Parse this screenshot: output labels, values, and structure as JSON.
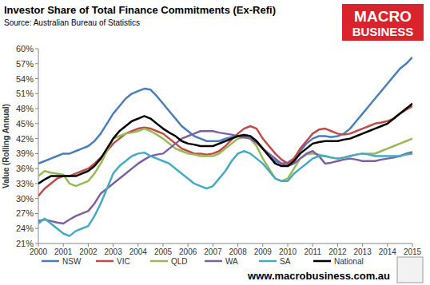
{
  "chart_data": {
    "type": "line",
    "title": "Investor Share of Total Finance Commitments (Ex-Refi)",
    "subtitle": "Source: Australian Bureau of Statistics",
    "ylabel": "Value (Rolling Annual)",
    "annotations": [
      "MACRO",
      "BUSINESS",
      "www.macrobusiness.com.au"
    ],
    "x": [
      2000,
      2000.25,
      2000.5,
      2000.75,
      2001,
      2001.25,
      2001.5,
      2001.75,
      2002,
      2002.25,
      2002.5,
      2002.75,
      2003,
      2003.25,
      2003.5,
      2003.75,
      2004,
      2004.25,
      2004.5,
      2004.75,
      2005,
      2005.25,
      2005.5,
      2005.75,
      2006,
      2006.25,
      2006.5,
      2006.75,
      2007,
      2007.25,
      2007.5,
      2007.75,
      2008,
      2008.25,
      2008.5,
      2008.75,
      2009,
      2009.25,
      2009.5,
      2009.75,
      2010,
      2010.25,
      2010.5,
      2010.75,
      2011,
      2011.25,
      2011.5,
      2011.75,
      2012,
      2012.25,
      2012.5,
      2012.75,
      2013,
      2013.25,
      2013.5,
      2013.75,
      2014,
      2014.25,
      2014.5,
      2014.75,
      2015
    ],
    "series": [
      {
        "name": "NSW",
        "color": "#4a7ebb",
        "values": [
          37,
          37.5,
          38,
          38.5,
          39,
          39,
          39.5,
          40,
          40.5,
          41.5,
          43,
          45,
          47,
          48.5,
          50,
          51,
          51.5,
          52,
          51.8,
          50.5,
          49,
          47.5,
          46,
          44.5,
          43.5,
          42.5,
          42,
          41.5,
          41.5,
          41.5,
          42,
          42.3,
          42.5,
          42.8,
          42.5,
          41.5,
          40,
          38.5,
          37.5,
          37,
          37.2,
          38,
          39.5,
          41,
          42,
          42.5,
          42.5,
          42.3,
          42.5,
          43,
          44,
          45.5,
          47,
          48.5,
          50,
          51.5,
          53,
          54.5,
          56,
          57,
          58.3
        ]
      },
      {
        "name": "VIC",
        "color": "#be4b48",
        "values": [
          30.5,
          32,
          33,
          34,
          34.5,
          34.5,
          35,
          35.5,
          36,
          37,
          38.2,
          39.5,
          41,
          42,
          43,
          43.5,
          44,
          44.2,
          44,
          43.5,
          43,
          42,
          41,
          40,
          39.5,
          39,
          39,
          38.8,
          39,
          39.5,
          40.5,
          41.8,
          43,
          44,
          44.5,
          44,
          42,
          40.5,
          39,
          37.8,
          37,
          38,
          40,
          41.5,
          43,
          43.8,
          44,
          43.5,
          43,
          42.8,
          43,
          43.5,
          44,
          44.5,
          45,
          45.2,
          45.5,
          46,
          47,
          47.8,
          48.5
        ]
      },
      {
        "name": "QLD",
        "color": "#98b954",
        "values": [
          34.5,
          35.5,
          35.2,
          35,
          34.8,
          33,
          32.5,
          33,
          33.5,
          35,
          37,
          39.5,
          42,
          42.5,
          43,
          43.2,
          43.5,
          44,
          43.5,
          42.8,
          42,
          41,
          40,
          39.5,
          39,
          38.8,
          38.5,
          38.5,
          38.5,
          39,
          40,
          41,
          42,
          42.2,
          42,
          40.5,
          38,
          36,
          34,
          33.5,
          34,
          36,
          38,
          38.8,
          39,
          38.8,
          38.5,
          38.2,
          38,
          38.2,
          38.5,
          38.8,
          39,
          39,
          39,
          39.5,
          40,
          40.5,
          41,
          41.5,
          42
        ]
      },
      {
        "name": "WA",
        "color": "#7d60a0",
        "values": [
          25.5,
          25.8,
          25.5,
          25.2,
          25,
          25.8,
          26.5,
          27,
          27.5,
          29,
          31,
          32,
          33,
          34,
          35,
          36,
          37,
          37.8,
          38.5,
          38.8,
          39,
          40,
          41,
          42,
          42.5,
          43,
          43.5,
          43.5,
          43.5,
          43.2,
          43,
          42.8,
          42.5,
          42.3,
          42,
          41.2,
          40,
          39,
          38,
          37,
          36.5,
          37,
          38,
          39,
          39.5,
          38.5,
          37,
          37.2,
          37.5,
          37.8,
          38,
          37.8,
          37.5,
          37.5,
          37.5,
          37.8,
          38,
          38.2,
          38.5,
          39,
          39.3
        ]
      },
      {
        "name": "SA",
        "color": "#46aac5",
        "values": [
          25,
          26,
          25,
          24,
          23,
          22.5,
          23.5,
          24,
          24.5,
          26.5,
          29,
          32,
          35,
          36.5,
          37.5,
          38.5,
          39,
          39.2,
          38.5,
          38,
          37.5,
          37,
          36,
          35,
          34,
          33,
          32.5,
          32,
          32.5,
          34,
          35.5,
          37.5,
          39,
          39.5,
          39,
          38,
          37,
          35.5,
          34,
          33.5,
          33.5,
          35,
          36,
          37,
          38,
          38.5,
          38.5,
          38.2,
          38,
          38.2,
          38.5,
          38.8,
          39,
          38.8,
          38.5,
          38.5,
          38.5,
          38.5,
          38.5,
          38.8,
          39
        ]
      },
      {
        "name": "National",
        "color": "#000000",
        "values": [
          33,
          33.8,
          34.5,
          34.5,
          34.5,
          34.5,
          34.5,
          35,
          35.5,
          36.5,
          38,
          40,
          42,
          43.5,
          44.5,
          45.5,
          46,
          46.5,
          46,
          45,
          44,
          43.2,
          42.5,
          41.5,
          41,
          40.8,
          40.5,
          40.5,
          40.5,
          41,
          41.5,
          42,
          42.5,
          42.7,
          42.5,
          41.5,
          40,
          38.5,
          37,
          36.5,
          36.5,
          37.5,
          39,
          40,
          41,
          41.3,
          41.5,
          41.5,
          41.5,
          41.8,
          42,
          42.5,
          43,
          43.5,
          44,
          44.5,
          45,
          46,
          47,
          48,
          49
        ]
      }
    ],
    "xlim": [
      2000,
      2015
    ],
    "xticks": [
      2000,
      2001,
      2002,
      2003,
      2004,
      2005,
      2006,
      2007,
      2008,
      2009,
      2010,
      2011,
      2012,
      2013,
      2014,
      2015
    ],
    "ylim": [
      21,
      60
    ],
    "yticks": [
      {
        "value": 21,
        "label": "21%"
      },
      {
        "value": 24,
        "label": "24%"
      },
      {
        "value": 27,
        "label": "27%"
      },
      {
        "value": 30,
        "label": "30%"
      },
      {
        "value": 33,
        "label": "33%"
      },
      {
        "value": 36,
        "label": "36%"
      },
      {
        "value": 39,
        "label": "39%"
      },
      {
        "value": 42,
        "label": "42%"
      },
      {
        "value": 45,
        "label": "45%"
      },
      {
        "value": 48,
        "label": "48%"
      },
      {
        "value": 51,
        "label": "51%"
      },
      {
        "value": 54,
        "label": "54%"
      },
      {
        "value": 57,
        "label": "57%"
      },
      {
        "value": 60,
        "label": "60%"
      }
    ],
    "grid": false,
    "legend": "bottom"
  }
}
